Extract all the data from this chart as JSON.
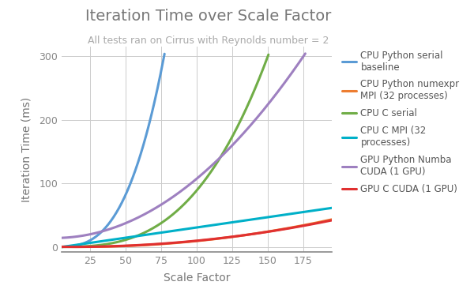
{
  "title": "Iteration Time over Scale Factor",
  "subtitle": "All tests ran on Cirrus with Reynolds number = 2",
  "xlabel": "Scale Factor",
  "ylabel": "Iteration Time (ms)",
  "xlim": [
    5,
    195
  ],
  "ylim": [
    -8,
    315
  ],
  "xticks": [
    25,
    50,
    75,
    100,
    125,
    150,
    175
  ],
  "yticks": [
    0,
    100,
    200,
    300
  ],
  "background_color": "#ffffff",
  "grid_color": "#cccccc",
  "series": [
    {
      "label": "CPU Python serial\nbaseline",
      "color": "#5b9bd5"
    },
    {
      "label": "CPU Python numexpr\nMPI (32 processes)",
      "color": "#ed7d31"
    },
    {
      "label": "CPU C serial",
      "color": "#70ad47"
    },
    {
      "label": "CPU C MPI (32\nprocesses)",
      "color": "#00b0c8"
    },
    {
      "label": "GPU Python Numba\nCUDA (1 GPU)",
      "color": "#9e80c0"
    },
    {
      "label": "GPU C CUDA (1 GPU)",
      "color": "#e03030"
    }
  ],
  "title_fontsize": 14,
  "subtitle_fontsize": 9,
  "axis_label_fontsize": 10,
  "tick_fontsize": 9,
  "legend_fontsize": 8.5,
  "line_width": 2.2
}
